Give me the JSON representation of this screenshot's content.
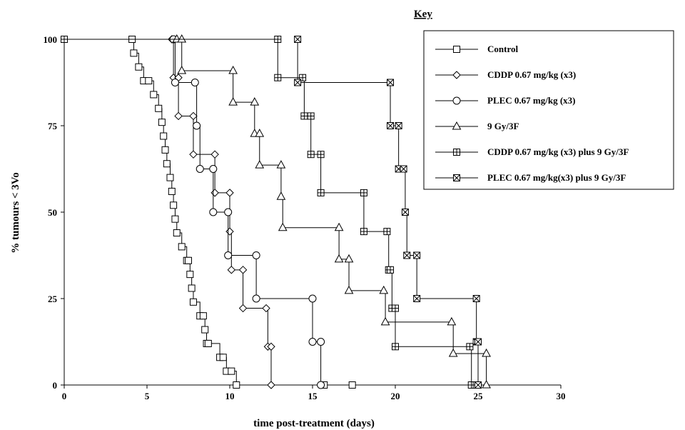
{
  "chart_data": {
    "type": "line",
    "step": true,
    "xlabel": "time post-treatment (days)",
    "ylabel": "% tumours < 3Vo",
    "xlim": [
      0,
      30
    ],
    "ylim": [
      0,
      100
    ],
    "xticks": [
      0,
      5,
      10,
      15,
      20,
      25,
      30
    ],
    "yticks": [
      0,
      25,
      50,
      75,
      100
    ],
    "grid": false,
    "legend": {
      "title": "Key",
      "placement": "top-right"
    },
    "series": [
      {
        "name": "Control",
        "marker": "square",
        "x": [
          0,
          4.1,
          4.2,
          4.5,
          4.8,
          5.1,
          5.4,
          5.7,
          5.9,
          6.0,
          6.1,
          6.2,
          6.4,
          6.5,
          6.6,
          6.7,
          6.8,
          7.1,
          7.4,
          7.5,
          7.6,
          7.7,
          7.8,
          8.2,
          8.4,
          8.5,
          8.6,
          8.7,
          9.4,
          9.6,
          9.8,
          10.1,
          10.4,
          15.6,
          15.7,
          17.4
        ],
        "y": [
          100,
          100,
          96,
          92,
          88,
          88,
          84,
          80,
          76,
          72,
          68,
          64,
          60,
          56,
          52,
          48,
          44,
          40,
          36,
          36,
          32,
          28,
          24,
          20,
          20,
          16,
          12,
          12,
          8,
          8,
          4,
          4,
          0,
          0,
          0,
          0
        ]
      },
      {
        "name": "CDDP 0.67 mg/kg (x3)",
        "marker": "diamond",
        "x": [
          0,
          6.5,
          6.6,
          6.9,
          7.8,
          7.8,
          9.1,
          9.1,
          10.0,
          10.1,
          10.4,
          10.8,
          12.2,
          12.4,
          12.5,
          15.5
        ],
        "y": [
          100,
          100,
          88.9,
          77.8,
          66.7,
          66.7,
          55.6,
          55.6,
          44.4,
          33.3,
          33.3,
          22.2,
          22.2,
          11.1,
          0,
          0
        ],
        "points": [
          [
            6.5,
            100
          ],
          [
            6.6,
            88.9
          ],
          [
            6.9,
            88.9
          ],
          [
            6.9,
            77.8
          ],
          [
            7.8,
            77.8
          ],
          [
            7.8,
            66.7
          ],
          [
            9.1,
            66.7
          ],
          [
            9.1,
            55.6
          ],
          [
            10.0,
            55.6
          ],
          [
            10.0,
            44.4
          ],
          [
            10.1,
            33.3
          ],
          [
            10.8,
            33.3
          ],
          [
            10.8,
            22.2
          ],
          [
            12.2,
            22.2
          ],
          [
            12.3,
            11.1
          ],
          [
            12.5,
            11.1
          ],
          [
            12.5,
            0
          ]
        ]
      },
      {
        "name": "PLEC 0.67 mg/kg (x3)",
        "marker": "circle",
        "points": [
          [
            6.6,
            100
          ],
          [
            6.7,
            87.5
          ],
          [
            7.9,
            87.5
          ],
          [
            8.0,
            75
          ],
          [
            8.2,
            62.5
          ],
          [
            9.0,
            62.5
          ],
          [
            9.0,
            50
          ],
          [
            9.9,
            50
          ],
          [
            9.9,
            37.5
          ],
          [
            11.6,
            37.5
          ],
          [
            11.6,
            25
          ],
          [
            15.0,
            25
          ],
          [
            15.0,
            12.5
          ],
          [
            15.5,
            12.5
          ],
          [
            15.5,
            0
          ]
        ]
      },
      {
        "name": "9 Gy/3F",
        "marker": "triangle",
        "points": [
          [
            6.8,
            100
          ],
          [
            7.1,
            100
          ],
          [
            7.1,
            90.9
          ],
          [
            10.2,
            90.9
          ],
          [
            10.2,
            81.8
          ],
          [
            11.5,
            81.8
          ],
          [
            11.5,
            72.7
          ],
          [
            11.8,
            72.7
          ],
          [
            11.8,
            63.6
          ],
          [
            13.1,
            63.6
          ],
          [
            13.1,
            54.5
          ],
          [
            13.2,
            45.5
          ],
          [
            16.6,
            45.5
          ],
          [
            16.6,
            36.4
          ],
          [
            17.2,
            36.4
          ],
          [
            17.2,
            27.3
          ],
          [
            19.3,
            27.3
          ],
          [
            19.4,
            18.2
          ],
          [
            23.4,
            18.2
          ],
          [
            23.5,
            9.1
          ],
          [
            25.5,
            9.1
          ],
          [
            25.5,
            0
          ]
        ]
      },
      {
        "name": "CDDP 0.67 mg/kg (x3) plus 9 Gy/3F",
        "marker": "square-plus",
        "points": [
          [
            0,
            100
          ],
          [
            12.9,
            100
          ],
          [
            12.9,
            88.9
          ],
          [
            14.4,
            88.9
          ],
          [
            14.5,
            77.8
          ],
          [
            14.9,
            77.8
          ],
          [
            14.9,
            66.7
          ],
          [
            15.5,
            66.7
          ],
          [
            15.5,
            55.6
          ],
          [
            18.1,
            55.6
          ],
          [
            18.1,
            44.4
          ],
          [
            19.5,
            44.4
          ],
          [
            19.6,
            33.3
          ],
          [
            19.7,
            33.3
          ],
          [
            19.8,
            22.2
          ],
          [
            20.0,
            22.2
          ],
          [
            20.0,
            11.1
          ],
          [
            24.5,
            11.1
          ],
          [
            24.6,
            0
          ],
          [
            24.9,
            0
          ]
        ]
      },
      {
        "name": "PLEC 0.67 mg/kg(x3)  plus 9 Gy/3F",
        "marker": "square-x",
        "points": [
          [
            14.1,
            100
          ],
          [
            14.1,
            87.5
          ],
          [
            19.7,
            87.5
          ],
          [
            19.7,
            75
          ],
          [
            20.2,
            75
          ],
          [
            20.2,
            62.5
          ],
          [
            20.5,
            62.5
          ],
          [
            20.6,
            50
          ],
          [
            20.7,
            37.5
          ],
          [
            21.3,
            37.5
          ],
          [
            21.3,
            25
          ],
          [
            24.9,
            25
          ],
          [
            24.9,
            12.5
          ],
          [
            25.0,
            12.5
          ],
          [
            25.0,
            0
          ]
        ]
      }
    ]
  }
}
